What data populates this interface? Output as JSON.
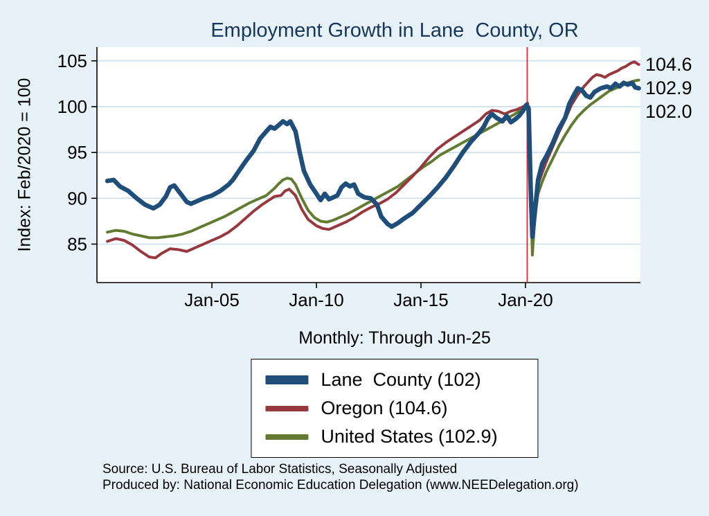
{
  "chart_data": {
    "type": "line",
    "title": "Employment Growth in Lane  County, OR",
    "subtitle": "Monthly: Through Jun-25",
    "ylabel": "Index: Feb/2020 = 100",
    "xlabel": "",
    "xlim": [
      1999.5,
      2025.5
    ],
    "ylim": [
      80.8,
      106.5
    ],
    "y_ticks": [
      85,
      90,
      95,
      100,
      105
    ],
    "x_ticks": [
      {
        "value": 2005,
        "label": "Jan-05"
      },
      {
        "value": 2010,
        "label": "Jan-10"
      },
      {
        "value": 2015,
        "label": "Jan-15"
      },
      {
        "value": 2020,
        "label": "Jan-20"
      }
    ],
    "grid": "horizontal",
    "legend_position": "below",
    "event_line": {
      "x": 2020.083,
      "color": "#dc2633"
    },
    "colors": {
      "grid": "#c2dcea",
      "axis": "#000000",
      "background": "#e6f2f8",
      "plot_background": "#ffffff",
      "title": "#17365c"
    },
    "series": [
      {
        "id": "lane-county",
        "name": "Lane  County",
        "legend_label": "Lane  County (102)",
        "end_label": "102.0",
        "color": "#1e4e79",
        "width": 6.5,
        "points": [
          [
            2000.0,
            91.9
          ],
          [
            2000.3,
            92.0
          ],
          [
            2000.6,
            91.3
          ],
          [
            2001.0,
            90.8
          ],
          [
            2001.4,
            90.0
          ],
          [
            2001.8,
            89.3
          ],
          [
            2002.2,
            88.9
          ],
          [
            2002.5,
            89.3
          ],
          [
            2002.8,
            90.2
          ],
          [
            2003.0,
            91.2
          ],
          [
            2003.2,
            91.4
          ],
          [
            2003.5,
            90.5
          ],
          [
            2003.8,
            89.6
          ],
          [
            2004.0,
            89.4
          ],
          [
            2004.3,
            89.7
          ],
          [
            2004.6,
            90.0
          ],
          [
            2005.0,
            90.3
          ],
          [
            2005.4,
            90.8
          ],
          [
            2005.8,
            91.5
          ],
          [
            2006.0,
            92.0
          ],
          [
            2006.3,
            93.0
          ],
          [
            2006.6,
            94.0
          ],
          [
            2007.0,
            95.2
          ],
          [
            2007.3,
            96.5
          ],
          [
            2007.6,
            97.3
          ],
          [
            2007.8,
            97.8
          ],
          [
            2008.0,
            97.6
          ],
          [
            2008.2,
            98.0
          ],
          [
            2008.4,
            98.4
          ],
          [
            2008.6,
            98.1
          ],
          [
            2008.75,
            98.4
          ],
          [
            2009.0,
            97.3
          ],
          [
            2009.2,
            95.0
          ],
          [
            2009.4,
            93.0
          ],
          [
            2009.7,
            91.5
          ],
          [
            2010.0,
            90.5
          ],
          [
            2010.2,
            89.8
          ],
          [
            2010.4,
            90.5
          ],
          [
            2010.6,
            89.9
          ],
          [
            2010.8,
            90.1
          ],
          [
            2011.0,
            90.3
          ],
          [
            2011.2,
            91.2
          ],
          [
            2011.4,
            91.6
          ],
          [
            2011.6,
            91.3
          ],
          [
            2011.8,
            91.5
          ],
          [
            2012.0,
            90.5
          ],
          [
            2012.3,
            90.1
          ],
          [
            2012.6,
            90.0
          ],
          [
            2012.9,
            89.3
          ],
          [
            2013.1,
            88.0
          ],
          [
            2013.4,
            87.2
          ],
          [
            2013.6,
            86.9
          ],
          [
            2013.9,
            87.3
          ],
          [
            2014.2,
            87.8
          ],
          [
            2014.6,
            88.4
          ],
          [
            2015.0,
            89.3
          ],
          [
            2015.4,
            90.2
          ],
          [
            2015.8,
            91.2
          ],
          [
            2016.2,
            92.3
          ],
          [
            2016.6,
            93.6
          ],
          [
            2017.0,
            95.0
          ],
          [
            2017.4,
            96.2
          ],
          [
            2017.8,
            97.2
          ],
          [
            2018.0,
            97.8
          ],
          [
            2018.2,
            98.7
          ],
          [
            2018.4,
            99.2
          ],
          [
            2018.6,
            98.8
          ],
          [
            2018.9,
            98.4
          ],
          [
            2019.1,
            99.0
          ],
          [
            2019.3,
            98.3
          ],
          [
            2019.5,
            98.6
          ],
          [
            2019.7,
            99.0
          ],
          [
            2019.9,
            99.6
          ],
          [
            2020.05,
            100.2
          ],
          [
            2020.15,
            99.8
          ],
          [
            2020.25,
            91.0
          ],
          [
            2020.33,
            85.8
          ],
          [
            2020.45,
            88.5
          ],
          [
            2020.6,
            92.0
          ],
          [
            2020.8,
            93.8
          ],
          [
            2021.0,
            94.6
          ],
          [
            2021.3,
            96.0
          ],
          [
            2021.6,
            97.6
          ],
          [
            2021.9,
            98.8
          ],
          [
            2022.1,
            100.3
          ],
          [
            2022.3,
            101.2
          ],
          [
            2022.5,
            102.0
          ],
          [
            2022.7,
            101.8
          ],
          [
            2022.9,
            101.2
          ],
          [
            2023.1,
            101.0
          ],
          [
            2023.3,
            101.6
          ],
          [
            2023.6,
            102.0
          ],
          [
            2023.9,
            102.2
          ],
          [
            2024.1,
            102.0
          ],
          [
            2024.3,
            102.5
          ],
          [
            2024.5,
            102.2
          ],
          [
            2024.7,
            102.6
          ],
          [
            2024.9,
            102.4
          ],
          [
            2025.1,
            102.6
          ],
          [
            2025.25,
            102.1
          ],
          [
            2025.42,
            102.0
          ]
        ]
      },
      {
        "id": "oregon",
        "name": "Oregon",
        "legend_label": "Oregon (104.6)",
        "end_label": "104.6",
        "color": "#97383f",
        "width": 4,
        "points": [
          [
            2000.0,
            85.3
          ],
          [
            2000.4,
            85.6
          ],
          [
            2000.8,
            85.4
          ],
          [
            2001.2,
            84.9
          ],
          [
            2001.6,
            84.2
          ],
          [
            2002.0,
            83.6
          ],
          [
            2002.3,
            83.5
          ],
          [
            2002.6,
            84.0
          ],
          [
            2003.0,
            84.5
          ],
          [
            2003.4,
            84.4
          ],
          [
            2003.8,
            84.2
          ],
          [
            2004.2,
            84.6
          ],
          [
            2004.6,
            85.0
          ],
          [
            2005.0,
            85.4
          ],
          [
            2005.4,
            85.8
          ],
          [
            2005.8,
            86.3
          ],
          [
            2006.2,
            87.0
          ],
          [
            2006.6,
            87.8
          ],
          [
            2007.0,
            88.6
          ],
          [
            2007.4,
            89.3
          ],
          [
            2007.8,
            89.9
          ],
          [
            2008.0,
            90.2
          ],
          [
            2008.3,
            90.3
          ],
          [
            2008.5,
            90.8
          ],
          [
            2008.7,
            91.0
          ],
          [
            2009.0,
            90.3
          ],
          [
            2009.3,
            88.8
          ],
          [
            2009.6,
            87.7
          ],
          [
            2010.0,
            87.0
          ],
          [
            2010.3,
            86.7
          ],
          [
            2010.6,
            86.6
          ],
          [
            2011.0,
            87.0
          ],
          [
            2011.4,
            87.4
          ],
          [
            2011.8,
            87.9
          ],
          [
            2012.2,
            88.5
          ],
          [
            2012.6,
            89.0
          ],
          [
            2013.0,
            89.4
          ],
          [
            2013.4,
            89.9
          ],
          [
            2013.8,
            90.6
          ],
          [
            2014.2,
            91.5
          ],
          [
            2014.6,
            92.4
          ],
          [
            2015.0,
            93.4
          ],
          [
            2015.4,
            94.5
          ],
          [
            2015.8,
            95.4
          ],
          [
            2016.2,
            96.1
          ],
          [
            2016.6,
            96.7
          ],
          [
            2017.0,
            97.3
          ],
          [
            2017.4,
            97.9
          ],
          [
            2017.8,
            98.5
          ],
          [
            2018.1,
            99.2
          ],
          [
            2018.4,
            99.6
          ],
          [
            2018.7,
            99.5
          ],
          [
            2019.0,
            99.2
          ],
          [
            2019.3,
            99.5
          ],
          [
            2019.6,
            99.7
          ],
          [
            2019.9,
            100.0
          ],
          [
            2020.1,
            100.4
          ],
          [
            2020.25,
            93.0
          ],
          [
            2020.33,
            86.5
          ],
          [
            2020.45,
            89.5
          ],
          [
            2020.6,
            91.5
          ],
          [
            2020.8,
            92.8
          ],
          [
            2021.0,
            94.0
          ],
          [
            2021.3,
            95.6
          ],
          [
            2021.6,
            97.2
          ],
          [
            2021.9,
            98.6
          ],
          [
            2022.2,
            100.2
          ],
          [
            2022.5,
            101.3
          ],
          [
            2022.8,
            102.2
          ],
          [
            2023.0,
            102.7
          ],
          [
            2023.2,
            103.2
          ],
          [
            2023.4,
            103.5
          ],
          [
            2023.6,
            103.4
          ],
          [
            2023.8,
            103.2
          ],
          [
            2024.0,
            103.5
          ],
          [
            2024.2,
            103.7
          ],
          [
            2024.4,
            103.9
          ],
          [
            2024.6,
            104.2
          ],
          [
            2024.8,
            104.4
          ],
          [
            2025.0,
            104.7
          ],
          [
            2025.2,
            104.9
          ],
          [
            2025.42,
            104.6
          ]
        ]
      },
      {
        "id": "united-states",
        "name": "United States",
        "legend_label": "United States (102.9)",
        "end_label": "102.9",
        "color": "#637b31",
        "width": 4,
        "points": [
          [
            2000.0,
            86.3
          ],
          [
            2000.4,
            86.5
          ],
          [
            2000.8,
            86.4
          ],
          [
            2001.2,
            86.1
          ],
          [
            2001.6,
            85.9
          ],
          [
            2002.0,
            85.7
          ],
          [
            2002.4,
            85.7
          ],
          [
            2002.8,
            85.8
          ],
          [
            2003.2,
            85.9
          ],
          [
            2003.6,
            86.1
          ],
          [
            2004.0,
            86.4
          ],
          [
            2004.4,
            86.8
          ],
          [
            2004.8,
            87.2
          ],
          [
            2005.2,
            87.6
          ],
          [
            2005.6,
            88.0
          ],
          [
            2006.0,
            88.5
          ],
          [
            2006.4,
            89.0
          ],
          [
            2006.8,
            89.5
          ],
          [
            2007.2,
            89.9
          ],
          [
            2007.6,
            90.3
          ],
          [
            2008.0,
            91.1
          ],
          [
            2008.2,
            91.6
          ],
          [
            2008.4,
            92.0
          ],
          [
            2008.6,
            92.2
          ],
          [
            2008.8,
            92.1
          ],
          [
            2009.0,
            91.5
          ],
          [
            2009.3,
            90.0
          ],
          [
            2009.6,
            88.7
          ],
          [
            2009.9,
            87.9
          ],
          [
            2010.2,
            87.5
          ],
          [
            2010.5,
            87.4
          ],
          [
            2010.8,
            87.6
          ],
          [
            2011.1,
            87.9
          ],
          [
            2011.5,
            88.3
          ],
          [
            2011.9,
            88.8
          ],
          [
            2012.3,
            89.3
          ],
          [
            2012.7,
            89.8
          ],
          [
            2013.1,
            90.3
          ],
          [
            2013.5,
            90.8
          ],
          [
            2013.9,
            91.3
          ],
          [
            2014.3,
            92.0
          ],
          [
            2014.7,
            92.7
          ],
          [
            2015.1,
            93.4
          ],
          [
            2015.5,
            94.0
          ],
          [
            2015.9,
            94.7
          ],
          [
            2016.3,
            95.2
          ],
          [
            2016.7,
            95.7
          ],
          [
            2017.1,
            96.2
          ],
          [
            2017.5,
            96.7
          ],
          [
            2017.9,
            97.2
          ],
          [
            2018.3,
            97.7
          ],
          [
            2018.7,
            98.2
          ],
          [
            2019.1,
            98.7
          ],
          [
            2019.5,
            99.2
          ],
          [
            2019.9,
            99.8
          ],
          [
            2020.1,
            100.0
          ],
          [
            2020.25,
            90.0
          ],
          [
            2020.33,
            83.8
          ],
          [
            2020.45,
            88.0
          ],
          [
            2020.6,
            90.5
          ],
          [
            2020.8,
            91.8
          ],
          [
            2021.0,
            92.9
          ],
          [
            2021.3,
            94.3
          ],
          [
            2021.6,
            95.7
          ],
          [
            2021.9,
            96.9
          ],
          [
            2022.2,
            98.0
          ],
          [
            2022.5,
            98.9
          ],
          [
            2022.8,
            99.6
          ],
          [
            2023.1,
            100.2
          ],
          [
            2023.4,
            100.7
          ],
          [
            2023.7,
            101.2
          ],
          [
            2024.0,
            101.7
          ],
          [
            2024.3,
            102.0
          ],
          [
            2024.6,
            102.3
          ],
          [
            2024.9,
            102.6
          ],
          [
            2025.2,
            102.8
          ],
          [
            2025.42,
            102.9
          ]
        ]
      }
    ]
  },
  "notes": {
    "source": "Source: U.S. Bureau of Labor Statistics, Seasonally Adjusted",
    "produced_by": "Produced by: National Economic Education Delegation (www.NEEDelegation.org)"
  }
}
